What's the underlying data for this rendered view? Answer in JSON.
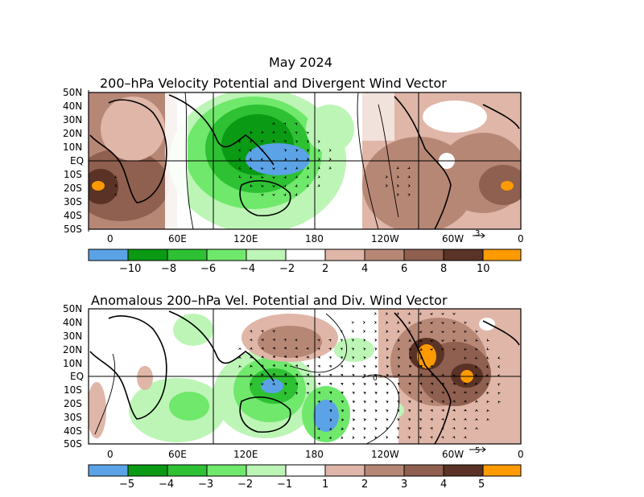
{
  "top_map": {
    "title_line1": "May 2024",
    "title_line2": "200–hPa Velocity Potential and Divergent Wind Vector",
    "lat_labels": [
      "50N",
      "40N",
      "30N",
      "20N",
      "10N",
      "EQ",
      "10S",
      "20S",
      "30S",
      "40S",
      "50S"
    ],
    "lon_labels": [
      "0",
      "60E",
      "120E",
      "180",
      "120W",
      "60W",
      "0"
    ],
    "vector_scale": "3",
    "colorbar_labels": [
      "−10",
      "−8",
      "−6",
      "−4",
      "−2",
      "2",
      "4",
      "6",
      "8",
      "10"
    ]
  },
  "bottom_map": {
    "title": "Anomalous 200–hPa Vel. Potential and Div. Wind Vector",
    "lat_labels": [
      "50N",
      "40N",
      "30N",
      "20N",
      "10N",
      "EQ",
      "10S",
      "20S",
      "30S",
      "40S",
      "50S"
    ],
    "lon_labels": [
      "0",
      "60E",
      "120E",
      "180",
      "120W",
      "60W",
      "0"
    ],
    "vector_scale": "5",
    "contour_label": "0",
    "colorbar_labels": [
      "−5",
      "−4",
      "−3",
      "−2",
      "−1",
      "1",
      "2",
      "3",
      "4",
      "5"
    ]
  },
  "colors": {
    "scale": [
      "#5ba3e6",
      "#0a9a14",
      "#2ec133",
      "#6fe86c",
      "#bdf5b6",
      "#ffffff",
      "#dfb6a8",
      "#b78776",
      "#8f5f4f",
      "#5a3226",
      "#ff9a00"
    ]
  }
}
